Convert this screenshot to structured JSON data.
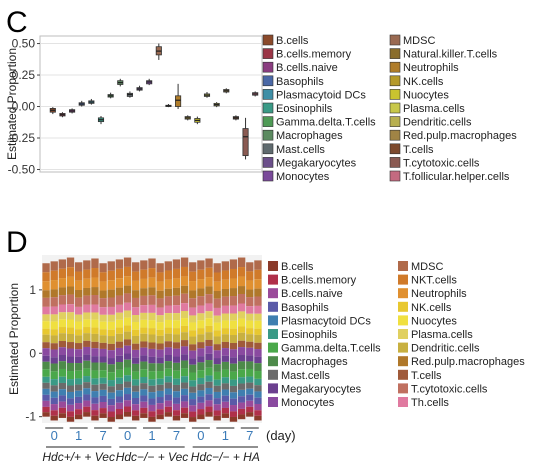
{
  "chart_data": [
    {
      "panel_label": "C",
      "type": "box",
      "ylabel": "Estimated Proportion",
      "ylim": [
        -0.52,
        0.56
      ],
      "yticks": [
        "0.50",
        "0.25",
        "0.00",
        "-0.25",
        "-0.50"
      ],
      "ytick_values": [
        0.5,
        0.25,
        0.0,
        -0.25,
        -0.5
      ],
      "grid": true,
      "legend_position": "right",
      "legend_columns": [
        [
          "B.cells",
          "B.cells.memory",
          "B.cells.naive",
          "Basophils",
          "Plasmacytoid DCs",
          "Eosinophils",
          "Gamma.delta.T.cells",
          "Macrophages",
          "Mast.cells",
          "Megakaryocytes",
          "Monocytes"
        ],
        [
          "MDSC",
          "Natural.killer.T.cells",
          "Neutrophils",
          "NK.cells",
          "Nuocytes",
          "Plasma.cells",
          "Dendritic.cells",
          "Red.pulp.macrophages",
          "T.cells",
          "T.cytotoxic.cells",
          "T.follicular.helper.cells"
        ]
      ],
      "series": [
        {
          "name": "B.cells",
          "color": "#8b4a2b",
          "q1": -0.045,
          "median": -0.03,
          "q3": -0.015,
          "min": -0.06,
          "max": -0.005
        },
        {
          "name": "B.cells.memory",
          "color": "#9b3546",
          "q1": -0.075,
          "median": -0.065,
          "q3": -0.055,
          "min": -0.085,
          "max": -0.045
        },
        {
          "name": "B.cells.naive",
          "color": "#8a3c80",
          "q1": -0.045,
          "median": -0.035,
          "q3": -0.025,
          "min": -0.055,
          "max": -0.015
        },
        {
          "name": "Basophils",
          "color": "#4a68a6",
          "q1": 0.01,
          "median": 0.02,
          "q3": 0.03,
          "min": 0.0,
          "max": 0.045
        },
        {
          "name": "Plasmacytoid DCs",
          "color": "#3f8fa6",
          "q1": 0.025,
          "median": 0.035,
          "q3": 0.045,
          "min": 0.015,
          "max": 0.06
        },
        {
          "name": "Eosinophils",
          "color": "#3a9a86",
          "q1": -0.12,
          "median": -0.105,
          "q3": -0.09,
          "min": -0.14,
          "max": -0.075
        },
        {
          "name": "Gamma.delta.T.cells",
          "color": "#4e9a55",
          "q1": 0.075,
          "median": 0.085,
          "q3": 0.095,
          "min": 0.065,
          "max": 0.11
        },
        {
          "name": "Macrophages",
          "color": "#5b8a60",
          "q1": 0.175,
          "median": 0.19,
          "q3": 0.205,
          "min": 0.16,
          "max": 0.22
        },
        {
          "name": "Mast.cells",
          "color": "#5f6a6e",
          "q1": 0.08,
          "median": 0.095,
          "q3": 0.105,
          "min": 0.07,
          "max": 0.12
        },
        {
          "name": "Megakaryocytes",
          "color": "#6b4f8a",
          "q1": 0.13,
          "median": 0.14,
          "q3": 0.15,
          "min": 0.12,
          "max": 0.165
        },
        {
          "name": "Monocytes",
          "color": "#7a4a9a",
          "q1": 0.18,
          "median": 0.195,
          "q3": 0.205,
          "min": 0.17,
          "max": 0.22
        },
        {
          "name": "MDSC",
          "color": "#9a6a52",
          "q1": 0.41,
          "median": 0.44,
          "q3": 0.475,
          "min": 0.37,
          "max": 0.5
        },
        {
          "name": "Natural.killer.T.cells",
          "color": "#8a6d2b",
          "q1": 0.0,
          "median": 0.005,
          "q3": 0.01,
          "min": -0.005,
          "max": 0.02
        },
        {
          "name": "Neutrophils",
          "color": "#b07d2a",
          "q1": 0.0,
          "median": 0.05,
          "q3": 0.085,
          "min": -0.02,
          "max": 0.18
        },
        {
          "name": "NK.cells",
          "color": "#b59a2a",
          "q1": -0.1,
          "median": -0.09,
          "q3": -0.08,
          "min": -0.11,
          "max": -0.07
        },
        {
          "name": "Nuocytes",
          "color": "#c9c32f",
          "q1": -0.125,
          "median": -0.11,
          "q3": -0.095,
          "min": -0.14,
          "max": -0.08
        },
        {
          "name": "Plasma.cells",
          "color": "#c8c84a",
          "q1": 0.08,
          "median": 0.09,
          "q3": 0.1,
          "min": 0.07,
          "max": 0.115
        },
        {
          "name": "Dendritic.cells",
          "color": "#b8b050",
          "q1": 0.005,
          "median": 0.015,
          "q3": 0.025,
          "min": -0.005,
          "max": 0.035
        },
        {
          "name": "Red.pulp.macrophages",
          "color": "#a08445",
          "q1": 0.115,
          "median": 0.125,
          "q3": 0.135,
          "min": 0.105,
          "max": 0.145
        },
        {
          "name": "T.cells",
          "color": "#7d4a2e",
          "q1": -0.1,
          "median": -0.09,
          "q3": -0.08,
          "min": -0.11,
          "max": -0.07
        },
        {
          "name": "T.cytotoxic.cells",
          "color": "#8a5a52",
          "q1": -0.39,
          "median": -0.24,
          "q3": -0.175,
          "min": -0.42,
          "max": -0.09
        },
        {
          "name": "T.follicular.helper.cells",
          "color": "#c46a80",
          "q1": 0.09,
          "median": 0.1,
          "q3": 0.11,
          "min": 0.08,
          "max": 0.12
        }
      ]
    },
    {
      "panel_label": "D",
      "type": "stacked-bar",
      "ylabel": "Estimated Proportion",
      "ylim": [
        -1.1,
        1.55
      ],
      "yticks": [
        "1",
        "0",
        "-1"
      ],
      "ytick_values": [
        1,
        0,
        -1
      ],
      "x_groups": [
        {
          "days": [
            "0",
            "1",
            "7"
          ]
        },
        {
          "days": [
            "0",
            "1",
            "7"
          ]
        },
        {
          "days": [
            "0",
            "1",
            "7"
          ]
        }
      ],
      "x_unit": "(day)",
      "condition_labels": [
        "Hdc+/+ + Vec",
        "Hdc−/− + Vec",
        "Hdc−/− + HA"
      ],
      "bars_per_group": 7,
      "legend_columns": [
        [
          "B.cells",
          "B.cells.memory",
          "B.cells.naive",
          "Basophils",
          "Plasmacytoid DCs",
          "Eosinophils",
          "Gamma.delta.T.cells",
          "Macrophages",
          "Mast.cells",
          "Megakaryocytes",
          "Monocytes"
        ],
        [
          "MDSC",
          "NKT.cells",
          "Neutrophils",
          "NK.cells",
          "Nuocytes",
          "Plasma.cells",
          "Dendritic.cells",
          "Red.pulp.macrophages",
          "T.cells",
          "T.cytotoxic.cells",
          "Th.cells"
        ]
      ],
      "colors": [
        "#8b3a2a",
        "#b0304a",
        "#9a4a9a",
        "#5a5aa8",
        "#3f7fb0",
        "#3a9a86",
        "#4aa84a",
        "#4d8a4a",
        "#6b6b6b",
        "#6b3f8f",
        "#8a4aa0",
        "#b06a4a",
        "#d07a2a",
        "#e09030",
        "#e8c830",
        "#f0e040",
        "#e0d060",
        "#c8b040",
        "#b0782a",
        "#a05a3a",
        "#c07060",
        "#e07aa0"
      ],
      "stack_order_top_to_bottom": [
        "MDSC",
        "NKT.cells",
        "Neutrophils",
        "Red.pulp.macrophages",
        "T.cytotoxic.cells",
        "Th.cells",
        "Plasma.cells",
        "Nuocytes",
        "NK.cells",
        "Dendritic.cells",
        "T.cells",
        "Monocytes",
        "Megakaryocytes",
        "Macrophages",
        "Gamma.delta.T.cells",
        "Eosinophils",
        "Mast.cells",
        "Plasmacytoid DCs",
        "Basophils",
        "B.cells.naive",
        "B.cells.memory",
        "B.cells"
      ],
      "stack_values": [
        0.12,
        0.12,
        0.12,
        0.1,
        0.12,
        0.1,
        0.09,
        0.1,
        0.08,
        0.1,
        0.08,
        0.1,
        0.08,
        0.1,
        0.1,
        0.08,
        0.08,
        0.08,
        0.08,
        0.08,
        0.07,
        0.06
      ]
    }
  ]
}
